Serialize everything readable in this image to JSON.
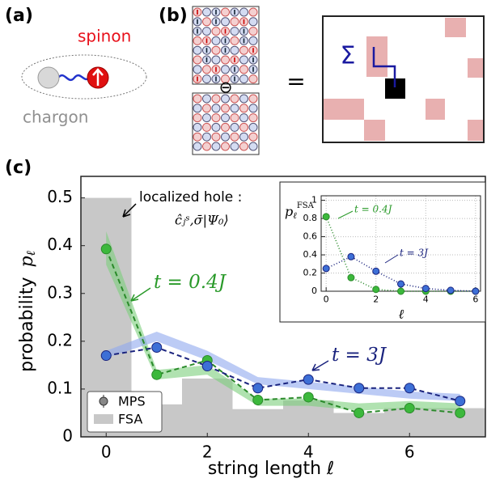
{
  "panels": {
    "a": {
      "label": "(a)",
      "spinon": "spinon",
      "chargon": "chargon"
    },
    "b": {
      "label": "(b)",
      "minus": "⊖",
      "equals": "=",
      "sigma": "Σ"
    },
    "c": {
      "label": "(c)"
    }
  },
  "chart_data": [
    {
      "type": "line",
      "xlabel": "string length ℓ",
      "ylabel": "probability",
      "ylabel_symbol": "p",
      "ylabel_sub": "ℓ",
      "x": [
        0,
        1,
        2,
        3,
        4,
        5,
        6,
        7
      ],
      "xlim": [
        -0.5,
        7.5
      ],
      "ylim": [
        0,
        0.545
      ],
      "xticks": [
        0,
        2,
        4,
        6
      ],
      "yticks": [
        0,
        0.1,
        0.2,
        0.3,
        0.4,
        0.5
      ],
      "legend": [
        "MPS",
        "FSA"
      ],
      "legend_location": "lower left",
      "fsa": {
        "color": "#c8c8c8",
        "values": [
          0.5,
          0.068,
          0.122,
          0.058,
          0.076,
          0.05,
          0.06,
          0.06
        ]
      },
      "bands": [
        {
          "color": "#7ccf7c",
          "lower": [
            0.36,
            0.12,
            0.13,
            0.065,
            0.065,
            0.055,
            0.06,
            0.055
          ],
          "upper": [
            0.43,
            0.14,
            0.15,
            0.08,
            0.08,
            0.07,
            0.075,
            0.07
          ]
        },
        {
          "color": "#8fa8ee",
          "lower": [
            0.165,
            0.2,
            0.16,
            0.11,
            0.1,
            0.09,
            0.08,
            0.075
          ],
          "upper": [
            0.18,
            0.22,
            0.18,
            0.125,
            0.115,
            0.105,
            0.095,
            0.09
          ]
        }
      ],
      "series": [
        {
          "color": "#3cb83c",
          "line_color": "#2a8a2a",
          "values": [
            0.393,
            0.13,
            0.16,
            0.077,
            0.083,
            0.05,
            0.06,
            0.05
          ]
        },
        {
          "color": "#3d6fd6",
          "line_color": "#1a237e",
          "values": [
            0.17,
            0.187,
            0.148,
            0.102,
            0.12,
            0.102,
            0.102,
            0.075
          ]
        }
      ],
      "annotations": {
        "hole": "localized hole :",
        "hole_state": "ĉⱼˢ,σ̄|Ψ₀⟩",
        "t_small": "t = 0.4J",
        "t_large": "t = 3J"
      }
    },
    {
      "type": "line",
      "xlabel": "ℓ",
      "ylabel": "p",
      "ylabel_sub": "ℓ",
      "ylabel_sup": "FSA",
      "x": [
        0,
        1,
        2,
        3,
        4,
        5,
        6
      ],
      "xlim": [
        -0.2,
        6.2
      ],
      "ylim": [
        0,
        1.05
      ],
      "xticks": [
        0,
        2,
        4,
        6
      ],
      "yticks": [
        0,
        0.2,
        0.4,
        0.6,
        0.8,
        1
      ],
      "grid": true,
      "series": [
        {
          "color": "#3cb83c",
          "line_color": "#2a8a2a",
          "values": [
            0.82,
            0.15,
            0.02,
            0,
            0,
            0,
            0
          ]
        },
        {
          "color": "#3d6fd6",
          "line_color": "#1a237e",
          "values": [
            0.25,
            0.38,
            0.22,
            0.08,
            0.03,
            0.01,
            0
          ]
        }
      ],
      "annotations": {
        "t_small": "t = 0.4J",
        "t_large": "t = 3J"
      }
    }
  ]
}
